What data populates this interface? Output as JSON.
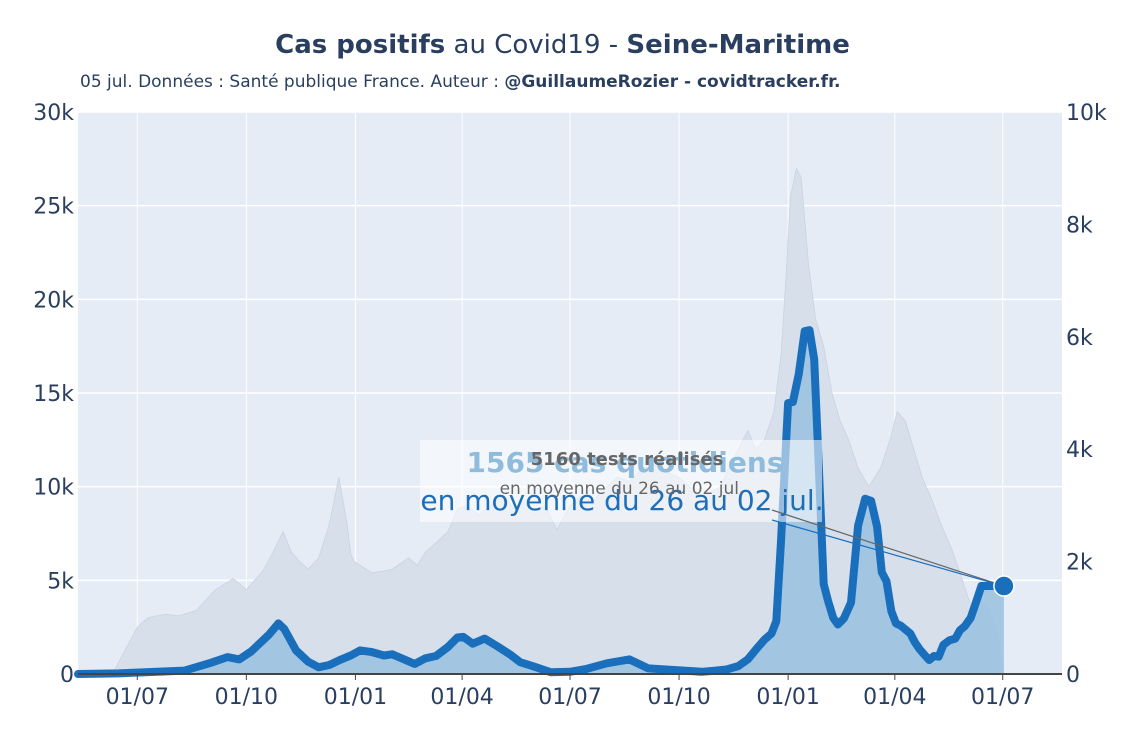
{
  "title": {
    "part1_bold": "Cas positifs",
    "part2": " au Covid19 - ",
    "part3_bold": "Seine-Maritime"
  },
  "subtitle": {
    "text": "05 jul. Données : Santé publique France. Auteur : ",
    "author_bold": "@GuillaumeRozier - covidtracker.fr."
  },
  "colors": {
    "plot_bg": "#e5ecf6",
    "tests_fill": "#d7dfea",
    "cases_fill": "#9cc3e0",
    "cases_line": "#1a6fbd",
    "grid": "#ffffff",
    "annotation_line": "#666666"
  },
  "chart_data": {
    "type": "area",
    "x_tick_labels": [
      "01/07",
      "01/10",
      "01/01",
      "01/04",
      "01/07",
      "01/10",
      "01/01",
      "01/04",
      "01/07"
    ],
    "x_tick_dates": [
      "2020-07-01",
      "2020-10-01",
      "2021-01-01",
      "2021-04-01",
      "2021-07-01",
      "2021-10-01",
      "2022-01-01",
      "2022-04-01",
      "2022-07-01"
    ],
    "x_range": [
      "2020-05-12",
      "2022-08-20"
    ],
    "y_left_ticks": [
      "0",
      "5k",
      "10k",
      "15k",
      "20k",
      "25k",
      "30k"
    ],
    "y_left_range": [
      0,
      30000
    ],
    "y_right_ticks": [
      "0",
      "2k",
      "4k",
      "6k",
      "8k",
      "10k"
    ],
    "y_right_range": [
      0,
      10000
    ],
    "grid": true,
    "series": [
      {
        "axis": "left",
        "dates": [
          "2020-05-12",
          "2020-06-10",
          "2020-07-01",
          "2020-07-10",
          "2020-07-25",
          "2020-08-05",
          "2020-08-20",
          "2020-09-05",
          "2020-09-20",
          "2020-10-01",
          "2020-10-15",
          "2020-10-25",
          "2020-11-01",
          "2020-11-08",
          "2020-11-15",
          "2020-11-22",
          "2020-12-01",
          "2020-12-10",
          "2020-12-18",
          "2020-12-25",
          "2020-12-28",
          "2020-12-31",
          "2021-01-05",
          "2021-01-15",
          "2021-01-25",
          "2021-02-01",
          "2021-02-08",
          "2021-02-15",
          "2021-02-22",
          "2021-03-01",
          "2021-03-10",
          "2021-03-20",
          "2021-03-28",
          "2021-04-05",
          "2021-04-15",
          "2021-04-25",
          "2021-05-05",
          "2021-05-15",
          "2021-05-25",
          "2021-06-01",
          "2021-06-10",
          "2021-06-20",
          "2021-07-01",
          "2021-07-10",
          "2021-07-20",
          "2021-08-01",
          "2021-08-10",
          "2021-08-20",
          "2021-09-01",
          "2021-09-10",
          "2021-09-20",
          "2021-10-01",
          "2021-10-10",
          "2021-10-20",
          "2021-10-28",
          "2021-11-05",
          "2021-11-12",
          "2021-11-20",
          "2021-11-28",
          "2021-12-05",
          "2021-12-12",
          "2021-12-20",
          "2021-12-26",
          "2021-12-30",
          "2022-01-03",
          "2022-01-08",
          "2022-01-12",
          "2022-01-18",
          "2022-01-24",
          "2022-01-31",
          "2022-02-07",
          "2022-02-14",
          "2022-02-21",
          "2022-03-01",
          "2022-03-10",
          "2022-03-20",
          "2022-03-28",
          "2022-04-03",
          "2022-04-10",
          "2022-04-17",
          "2022-04-24",
          "2022-05-01",
          "2022-05-10",
          "2022-05-20",
          "2022-05-28",
          "2022-06-05",
          "2022-06-12",
          "2022-06-20",
          "2022-06-27",
          "2022-07-02"
        ],
        "values": [
          0,
          0,
          2500,
          3000,
          3200,
          3100,
          3400,
          4500,
          5100,
          4500,
          5500,
          6700,
          7600,
          6500,
          6000,
          5600,
          6200,
          8000,
          10500,
          8000,
          6400,
          6000,
          5800,
          5400,
          5500,
          5600,
          5900,
          6200,
          5800,
          6500,
          7000,
          7600,
          8800,
          9000,
          8500,
          9000,
          9500,
          8800,
          9300,
          8500,
          9000,
          7700,
          9000,
          9500,
          9200,
          10000,
          10500,
          10300,
          11000,
          11200,
          10800,
          10500,
          10000,
          9500,
          9700,
          10000,
          11000,
          12000,
          13000,
          12000,
          12500,
          14000,
          17000,
          21000,
          25500,
          27000,
          26500,
          22000,
          19000,
          17500,
          15000,
          13500,
          12500,
          11000,
          10000,
          11000,
          12500,
          14000,
          13500,
          12000,
          10500,
          9500,
          8000,
          6500,
          5000,
          3500,
          4000,
          3300,
          2000,
          0
        ],
        "name": ""
      },
      {
        "axis": "right",
        "dates": [
          "2020-05-12",
          "2020-06-15",
          "2020-08-10",
          "2020-09-01",
          "2020-09-15",
          "2020-09-25",
          "2020-10-05",
          "2020-10-20",
          "2020-10-28",
          "2020-11-02",
          "2020-11-06",
          "2020-11-12",
          "2020-11-22",
          "2020-12-01",
          "2020-12-10",
          "2020-12-20",
          "2020-12-28",
          "2021-01-05",
          "2021-01-15",
          "2021-01-25",
          "2021-02-01",
          "2021-02-10",
          "2021-02-20",
          "2021-03-01",
          "2021-03-10",
          "2021-03-20",
          "2021-03-28",
          "2021-04-02",
          "2021-04-10",
          "2021-04-20",
          "2021-05-01",
          "2021-05-12",
          "2021-05-20",
          "2021-06-01",
          "2021-06-15",
          "2021-07-01",
          "2021-07-15",
          "2021-08-01",
          "2021-08-20",
          "2021-09-05",
          "2021-09-20",
          "2021-10-05",
          "2021-10-20",
          "2021-11-01",
          "2021-11-10",
          "2021-11-20",
          "2021-11-28",
          "2021-12-05",
          "2021-12-12",
          "2021-12-18",
          "2021-12-22",
          "2021-12-26",
          "2022-01-01",
          "2022-01-05",
          "2022-01-10",
          "2022-01-15",
          "2022-01-19",
          "2022-01-23",
          "2022-01-27",
          "2022-01-31",
          "2022-02-04",
          "2022-02-08",
          "2022-02-12",
          "2022-02-17",
          "2022-02-23",
          "2022-03-01",
          "2022-03-07",
          "2022-03-12",
          "2022-03-17",
          "2022-03-21",
          "2022-03-25",
          "2022-03-29",
          "2022-04-02",
          "2022-04-06",
          "2022-04-10",
          "2022-04-14",
          "2022-04-18",
          "2022-04-22",
          "2022-04-26",
          "2022-04-30",
          "2022-05-04",
          "2022-05-08",
          "2022-05-12",
          "2022-05-17",
          "2022-05-22",
          "2022-05-26",
          "2022-05-30",
          "2022-06-04",
          "2022-06-08",
          "2022-06-13",
          "2022-06-18",
          "2022-06-23",
          "2022-06-28",
          "2022-07-02"
        ],
        "values": [
          0,
          10,
          60,
          200,
          300,
          260,
          400,
          700,
          900,
          800,
          650,
          420,
          220,
          120,
          160,
          260,
          330,
          420,
          390,
          330,
          350,
          270,
          180,
          280,
          320,
          480,
          650,
          660,
          540,
          630,
          490,
          340,
          210,
          130,
          30,
          40,
          90,
          190,
          260,
          100,
          80,
          60,
          40,
          60,
          80,
          140,
          260,
          440,
          610,
          720,
          940,
          2360,
          4820,
          4840,
          5340,
          6100,
          6120,
          5600,
          3600,
          1600,
          1280,
          1000,
          880,
          990,
          1270,
          2640,
          3120,
          3080,
          2620,
          1810,
          1650,
          1120,
          900,
          860,
          790,
          720,
          560,
          440,
          340,
          250,
          320,
          310,
          520,
          600,
          630,
          780,
          850,
          1000,
          1250,
          1565,
          1565,
          1565,
          1565,
          1565
        ],
        "name": ""
      }
    ],
    "annotations": {
      "tests_main": "5160 tests réalisés",
      "tests_sub": "en moyenne du 26 au 02 jul.",
      "cases_main": "1565 cas quotidiens",
      "cases_sub": "en moyenne du 26 au 02 jul."
    }
  }
}
